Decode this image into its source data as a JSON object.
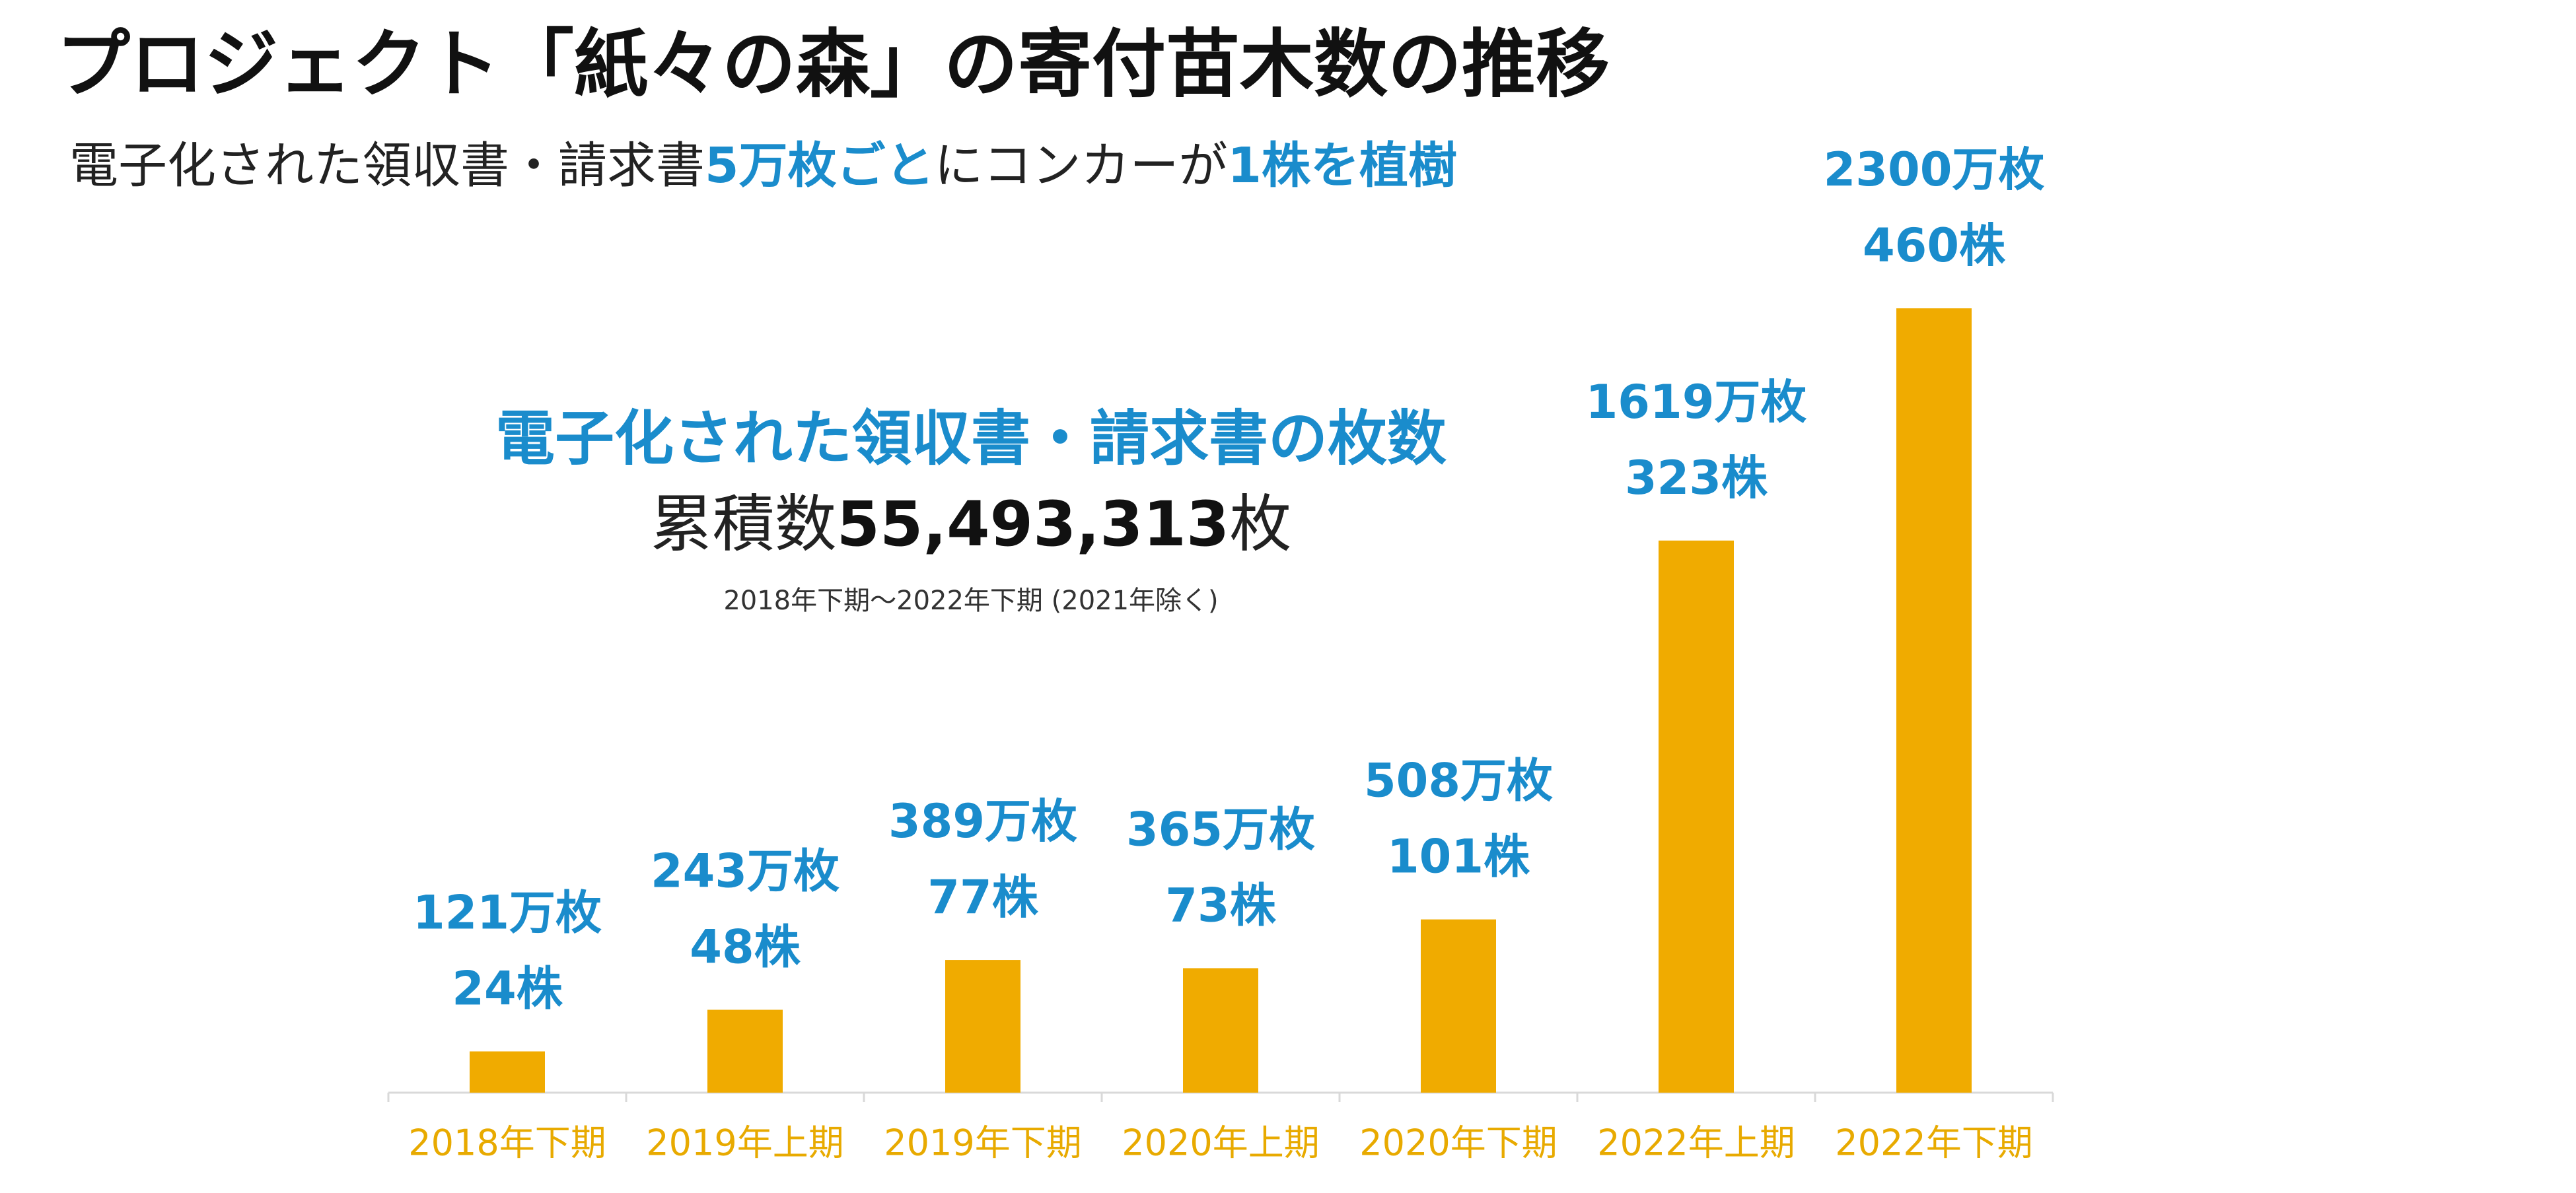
{
  "chart_data": {
    "type": "bar",
    "title": "プロジェクト「紙々の森」の寄付苗木数の推移",
    "subtitle": [
      {
        "text": "電子化された領収書・請求書",
        "highlight": false
      },
      {
        "text": "5万枚ごと",
        "highlight": true
      },
      {
        "text": "にコンカーが",
        "highlight": false
      },
      {
        "text": "1株を植樹",
        "highlight": true
      }
    ],
    "annotation": {
      "heading": "電子化された領収書・請求書の枚数",
      "total": [
        {
          "text": "累積数",
          "bold": false
        },
        {
          "text": "55,493,313",
          "bold": true
        },
        {
          "text": "枚",
          "bold": false
        }
      ],
      "note": "2018年下期～2022年下期 (2021年除く)"
    },
    "categories": [
      "2018年下期",
      "2019年上期",
      "2019年下期",
      "2020年上期",
      "2020年下期",
      "2022年上期",
      "2022年下期"
    ],
    "values": [
      121,
      243,
      389,
      365,
      508,
      1619,
      2300
    ],
    "value_labels": [
      "121万枚",
      "243万枚",
      "389万枚",
      "365万枚",
      "508万枚",
      "1619万枚",
      "2300万枚"
    ],
    "tree_labels": [
      "24株",
      "48株",
      "77株",
      "73株",
      "101株",
      "323株",
      "460株"
    ],
    "color": "#f0ab00",
    "label_color": "#1a8ccc",
    "category_color": "#e8aa00"
  }
}
